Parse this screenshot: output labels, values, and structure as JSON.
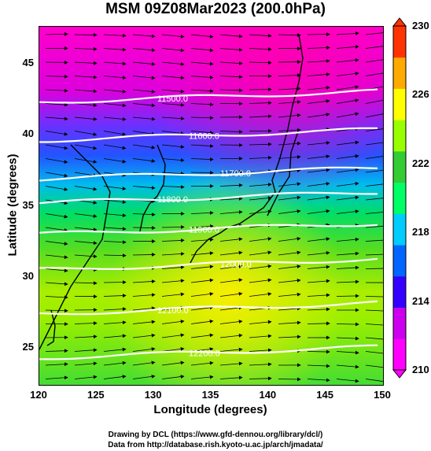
{
  "title": "MSM 09Z08Mar2023 (200.0hPa)",
  "axes": {
    "xlabel": "Longitude (degrees)",
    "ylabel": "Latitude  (degrees)",
    "x_ticks": [
      "120",
      "125",
      "130",
      "135",
      "140",
      "145",
      "150"
    ],
    "y_ticks": [
      "45",
      "40",
      "35",
      "30",
      "25"
    ],
    "xlim": [
      120,
      150
    ],
    "ylim": [
      22.4,
      47.6
    ]
  },
  "contours": [
    {
      "label": "11500.0",
      "lat": 42.3
    },
    {
      "label": "11600.0",
      "lat": 39.6
    },
    {
      "label": "11700.0",
      "lat": 36.9
    },
    {
      "label": "11800.0",
      "lat": 35.2
    },
    {
      "label": "11900.0",
      "lat": 33.0
    },
    {
      "label": "12000.0",
      "lat": 30.5
    },
    {
      "label": "12100.0",
      "lat": 27.4
    },
    {
      "label": "12200.0",
      "lat": 24.3
    }
  ],
  "colorbar": {
    "ticks": [
      "230",
      "226",
      "222",
      "218",
      "214",
      "210"
    ],
    "min": 210,
    "max": 230,
    "colors": [
      "#ff00ff",
      "#cc00ee",
      "#3300ff",
      "#0066ff",
      "#00ccff",
      "#00ff66",
      "#33cc33",
      "#99ff00",
      "#ffff00",
      "#ffaa00",
      "#ff3300"
    ]
  },
  "footer": {
    "line1": "Drawing by DCL (https://www.gfd-dennou.org/library/dcl/)",
    "line2": "Data from http://database.rish.kyoto-u.ac.jp/arch/jmadata/"
  }
}
